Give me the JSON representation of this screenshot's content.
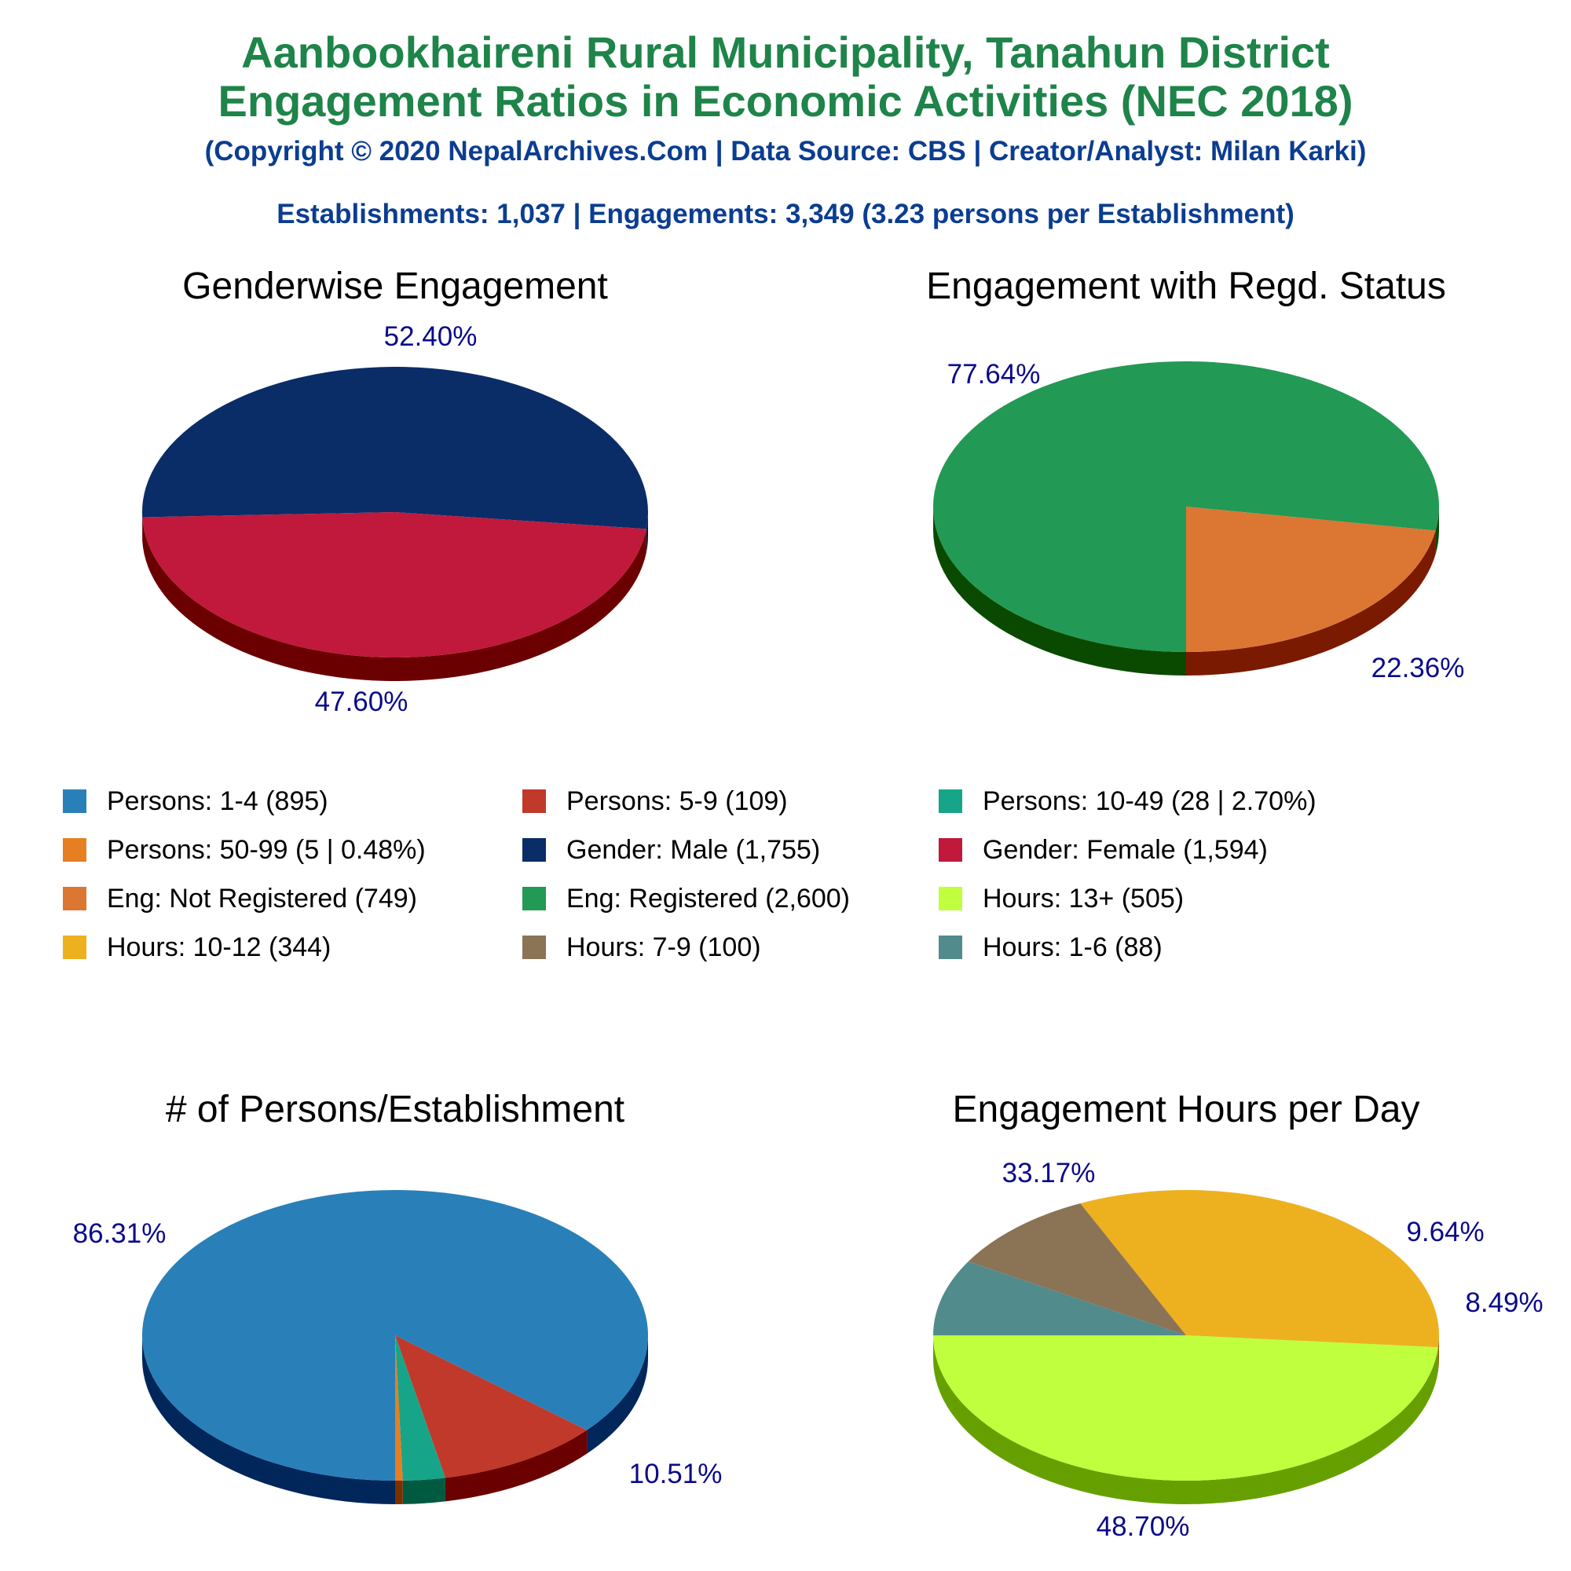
{
  "header": {
    "title_line1": "Aanbookhaireni Rural Municipality, Tanahun District",
    "title_line2": "Engagement Ratios in Economic Activities (NEC 2018)",
    "copyright": "(Copyright © 2020 NepalArchives.Com | Data Source: CBS | Creator/Analyst: Milan Karki)",
    "summary": "Establishments: 1,037 | Engagements: 3,349 (3.23 persons per Establishment)",
    "title_color": "#1e8449",
    "subtitle_color": "#0b3d91"
  },
  "label_color": "#0a0a8a",
  "chart_data": [
    {
      "type": "pie",
      "title": "Genderwise Engagement",
      "slices": [
        {
          "name": "Gender: Male",
          "value": 1755,
          "label": "52.40%",
          "color": "#0a2d68",
          "side": "#061a3d"
        },
        {
          "name": "Gender: Female",
          "value": 1594,
          "label": "47.60%",
          "color": "#c0193c",
          "side": "#6b0000"
        }
      ]
    },
    {
      "type": "pie",
      "title": "Engagement with Regd. Status",
      "slices": [
        {
          "name": "Eng: Registered",
          "value": 2600,
          "label": "77.64%",
          "color": "#229954",
          "side": "#0a4a00"
        },
        {
          "name": "Eng: Not Registered",
          "value": 749,
          "label": "22.36%",
          "color": "#dc7633",
          "side": "#7a1a00"
        }
      ]
    },
    {
      "type": "pie",
      "title": "# of Persons/Establishment",
      "slices": [
        {
          "name": "Persons: 1-4",
          "value": 895,
          "label": "86.31%",
          "color": "#2980b9",
          "side": "#00265a"
        },
        {
          "name": "Persons: 5-9",
          "value": 109,
          "label": "10.51%",
          "color": "#c0392b",
          "side": "#6b0000"
        },
        {
          "name": "Persons: 10-49",
          "value": 28,
          "label": "",
          "color": "#17a589",
          "side": "#005a40"
        },
        {
          "name": "Persons: 50-99",
          "value": 5,
          "label": "",
          "color": "#e67e22",
          "side": "#7a3000"
        }
      ]
    },
    {
      "type": "pie",
      "title": "Engagement Hours per Day",
      "slices": [
        {
          "name": "Hours: 13+",
          "value": 505,
          "label": "48.70%",
          "color": "#c0ff3e",
          "side": "#66a000"
        },
        {
          "name": "Hours: 10-12",
          "value": 344,
          "label": "33.17%",
          "color": "#edb120",
          "side": "#8a5a00"
        },
        {
          "name": "Hours: 7-9",
          "value": 100,
          "label": "9.64%",
          "color": "#8b7355",
          "side": "#4a3a20"
        },
        {
          "name": "Hours: 1-6",
          "value": 88,
          "label": "8.49%",
          "color": "#528b8b",
          "side": "#1e4a4a"
        }
      ]
    }
  ],
  "legend": [
    {
      "label": "Persons: 1-4 (895)",
      "color": "#2980b9"
    },
    {
      "label": "Persons: 5-9 (109)",
      "color": "#c0392b"
    },
    {
      "label": "Persons: 10-49 (28 | 2.70%)",
      "color": "#17a589"
    },
    {
      "label": "Persons: 50-99 (5 | 0.48%)",
      "color": "#e67e22"
    },
    {
      "label": "Gender: Male (1,755)",
      "color": "#0a2d68"
    },
    {
      "label": "Gender: Female (1,594)",
      "color": "#c0193c"
    },
    {
      "label": "Eng: Not Registered (749)",
      "color": "#dc7633"
    },
    {
      "label": "Eng: Registered (2,600)",
      "color": "#229954"
    },
    {
      "label": "Hours: 13+ (505)",
      "color": "#c0ff3e"
    },
    {
      "label": "Hours: 10-12 (344)",
      "color": "#edb120"
    },
    {
      "label": "Hours: 7-9 (100)",
      "color": "#8b7355"
    },
    {
      "label": "Hours: 1-6 (88)",
      "color": "#528b8b"
    }
  ]
}
